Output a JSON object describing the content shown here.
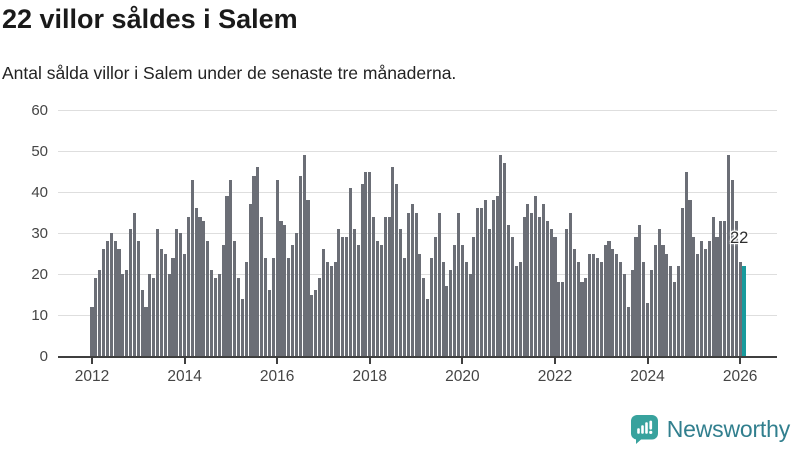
{
  "header": {
    "title": "22 villor såldes i Salem",
    "subtitle": "Antal sålda villor i Salem under de senaste tre månaderna."
  },
  "chart_data": {
    "type": "bar",
    "title": "22 villor såldes i Salem",
    "subtitle": "Antal sålda villor i Salem under de senaste tre månaderna.",
    "x_start": "2012-01",
    "x_end": "2026-02",
    "x_tick_labels": [
      "2012",
      "2014",
      "2016",
      "2018",
      "2020",
      "2022",
      "2024",
      "2026"
    ],
    "y_ticks": [
      0,
      10,
      20,
      30,
      40,
      50,
      60
    ],
    "ylim": [
      0,
      60
    ],
    "grid": "horizontal",
    "legend": "none",
    "annotation": "22",
    "highlight_last_value": 22,
    "values": [
      12,
      19,
      21,
      26,
      28,
      30,
      28,
      26,
      20,
      21,
      31,
      35,
      28,
      16,
      12,
      20,
      19,
      31,
      26,
      25,
      20,
      24,
      31,
      30,
      25,
      34,
      43,
      36,
      34,
      33,
      28,
      21,
      19,
      20,
      27,
      39,
      43,
      28,
      19,
      14,
      23,
      37,
      44,
      46,
      34,
      24,
      16,
      24,
      43,
      33,
      32,
      24,
      27,
      30,
      44,
      49,
      38,
      15,
      16,
      19,
      26,
      23,
      22,
      23,
      31,
      29,
      29,
      41,
      31,
      27,
      42,
      45,
      45,
      34,
      28,
      27,
      34,
      34,
      46,
      42,
      31,
      24,
      35,
      37,
      35,
      25,
      19,
      14,
      24,
      29,
      35,
      23,
      17,
      21,
      27,
      35,
      27,
      23,
      20,
      29,
      36,
      36,
      38,
      31,
      38,
      39,
      49,
      47,
      32,
      29,
      22,
      23,
      34,
      37,
      35,
      39,
      34,
      37,
      33,
      31,
      29,
      18,
      18,
      31,
      35,
      26,
      23,
      18,
      19,
      25,
      25,
      24,
      23,
      27,
      28,
      26,
      25,
      23,
      20,
      12,
      21,
      29,
      32,
      23,
      13,
      21,
      27,
      31,
      27,
      25,
      22,
      18,
      22,
      36,
      45,
      38,
      29,
      25,
      28,
      26,
      28,
      34,
      29,
      33,
      33,
      49,
      43,
      33,
      23,
      22
    ],
    "colors": {
      "bar": "#6b6e76",
      "highlight": "#189a9c",
      "axis": "#3f3f3f",
      "grid": "#dedede",
      "tick_label": "#454545"
    }
  },
  "branding": {
    "name": "Newsworthy",
    "icon": "newsworthy-bar-chart-speech-bubble",
    "icon_color": "#38a29d",
    "text_color": "#317f8e"
  }
}
